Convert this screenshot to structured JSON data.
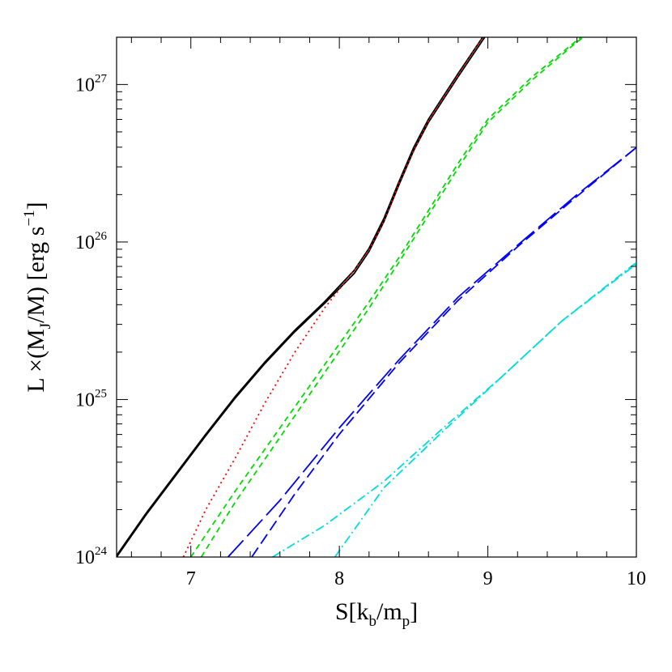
{
  "chart_data": {
    "type": "line",
    "title": "",
    "xlabel": {
      "main": "S[k",
      "sub1": "b",
      "mid": "/m",
      "sub2": "p",
      "end": "]"
    },
    "ylabel": {
      "pre": "L ×(M",
      "sub": "J",
      "post": "/M)  [erg s",
      "sup": "−1",
      "end": "]"
    },
    "xlim": [
      6.5,
      10
    ],
    "ylim": [
      24,
      27.3
    ],
    "y_scale": "log10",
    "x_ticks": [
      {
        "value": 7,
        "label": "7"
      },
      {
        "value": 8,
        "label": "8"
      },
      {
        "value": 9,
        "label": "9"
      },
      {
        "value": 10,
        "label": "10"
      }
    ],
    "y_ticks": [
      {
        "value": 24,
        "base": "10",
        "exp": "24"
      },
      {
        "value": 25,
        "base": "10",
        "exp": "25"
      },
      {
        "value": 26,
        "base": "10",
        "exp": "26"
      },
      {
        "value": 27,
        "base": "10",
        "exp": "27"
      }
    ],
    "grid": false,
    "legend": "none",
    "series": [
      {
        "color": "#000000",
        "dash": "",
        "values": [
          [
            6.5,
            24.01
          ],
          [
            6.7,
            24.28
          ],
          [
            6.9,
            24.53
          ],
          [
            7.1,
            24.78
          ],
          [
            7.3,
            25.02
          ],
          [
            7.5,
            25.24
          ],
          [
            7.7,
            25.44
          ],
          [
            7.9,
            25.62
          ],
          [
            8.1,
            25.82
          ],
          [
            8.2,
            25.96
          ],
          [
            8.3,
            26.15
          ],
          [
            8.4,
            26.38
          ],
          [
            8.5,
            26.6
          ],
          [
            8.6,
            26.78
          ],
          [
            8.8,
            27.07
          ],
          [
            9.0,
            27.35
          ],
          [
            9.15,
            27.52
          ]
        ]
      },
      {
        "color": "#000000",
        "dash": "",
        "values": [
          [
            6.5,
            24.0
          ],
          [
            6.7,
            24.27
          ],
          [
            6.9,
            24.52
          ],
          [
            7.1,
            24.77
          ],
          [
            7.3,
            25.01
          ],
          [
            7.5,
            25.23
          ],
          [
            7.7,
            25.43
          ],
          [
            7.9,
            25.61
          ],
          [
            8.1,
            25.8
          ],
          [
            8.2,
            25.94
          ],
          [
            8.3,
            26.13
          ],
          [
            8.4,
            26.36
          ],
          [
            8.5,
            26.58
          ],
          [
            8.6,
            26.76
          ],
          [
            8.8,
            27.05
          ],
          [
            9.0,
            27.33
          ],
          [
            9.15,
            27.5
          ]
        ]
      },
      {
        "color": "#ff0000",
        "dash": "2 4",
        "values": [
          [
            6.95,
            24.0
          ],
          [
            7.1,
            24.3
          ],
          [
            7.3,
            24.63
          ],
          [
            7.5,
            24.98
          ],
          [
            7.7,
            25.3
          ],
          [
            7.9,
            25.58
          ],
          [
            8.1,
            25.82
          ],
          [
            8.2,
            25.95
          ],
          [
            8.3,
            26.13
          ],
          [
            8.4,
            26.37
          ],
          [
            8.5,
            26.58
          ],
          [
            8.6,
            26.77
          ],
          [
            8.8,
            27.06
          ],
          [
            9.0,
            27.35
          ],
          [
            9.15,
            27.52
          ]
        ]
      },
      {
        "color": "#00dd00",
        "dash": "7 5",
        "values": [
          [
            7.0,
            24.0
          ],
          [
            7.3,
            24.42
          ],
          [
            7.6,
            24.82
          ],
          [
            7.9,
            25.22
          ],
          [
            8.2,
            25.62
          ],
          [
            8.4,
            25.9
          ],
          [
            8.6,
            26.2
          ],
          [
            8.8,
            26.5
          ],
          [
            9.0,
            26.78
          ],
          [
            9.3,
            27.05
          ],
          [
            9.6,
            27.28
          ],
          [
            9.85,
            27.45
          ]
        ]
      },
      {
        "color": "#00dd00",
        "dash": "7 5",
        "values": [
          [
            7.07,
            24.0
          ],
          [
            7.3,
            24.35
          ],
          [
            7.6,
            24.76
          ],
          [
            7.9,
            25.17
          ],
          [
            8.2,
            25.58
          ],
          [
            8.4,
            25.87
          ],
          [
            8.6,
            26.17
          ],
          [
            8.8,
            26.47
          ],
          [
            9.0,
            26.76
          ],
          [
            9.3,
            27.03
          ],
          [
            9.6,
            27.27
          ],
          [
            9.85,
            27.44
          ]
        ]
      },
      {
        "color": "#0000ff",
        "dash": "28 7",
        "values": [
          [
            7.25,
            24.0
          ],
          [
            7.6,
            24.36
          ],
          [
            8.0,
            24.82
          ],
          [
            8.4,
            25.25
          ],
          [
            8.8,
            25.65
          ],
          [
            9.2,
            25.98
          ],
          [
            9.6,
            26.3
          ],
          [
            10.0,
            26.6
          ]
        ]
      },
      {
        "color": "#0000ff",
        "dash": "14 6",
        "values": [
          [
            7.41,
            24.0
          ],
          [
            7.7,
            24.4
          ],
          [
            8.0,
            24.78
          ],
          [
            8.4,
            25.23
          ],
          [
            8.8,
            25.63
          ],
          [
            9.2,
            25.97
          ],
          [
            9.6,
            26.29
          ],
          [
            10.0,
            26.6
          ]
        ]
      },
      {
        "color": "#00dddd",
        "dash": "11 4 2 4",
        "values": [
          [
            7.55,
            24.0
          ],
          [
            7.9,
            24.2
          ],
          [
            8.3,
            24.48
          ],
          [
            8.7,
            24.82
          ],
          [
            9.1,
            25.15
          ],
          [
            9.5,
            25.5
          ],
          [
            10.0,
            25.87
          ]
        ]
      },
      {
        "color": "#00dddd",
        "dash": "11 4 2 4",
        "values": [
          [
            7.97,
            24.0
          ],
          [
            8.3,
            24.44
          ],
          [
            8.7,
            24.8
          ],
          [
            9.1,
            25.15
          ],
          [
            9.5,
            25.5
          ],
          [
            10.0,
            25.86
          ]
        ]
      }
    ]
  }
}
